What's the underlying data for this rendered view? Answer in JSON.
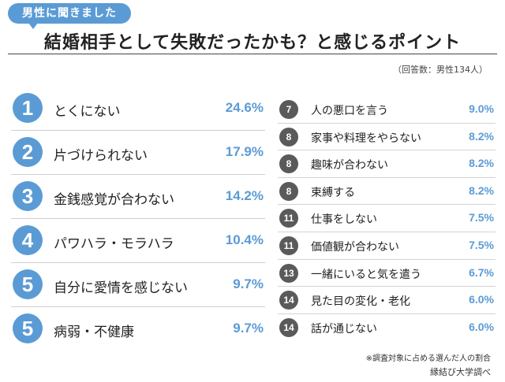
{
  "header": {
    "tag": "男性に聞きました",
    "title": "結婚相手として失敗だったかも？と感じるポイント",
    "respondents": "（回答数：男性134人）"
  },
  "footer": {
    "note": "※調査対象に占める選んだ人の割合",
    "source": "縁結び大学調べ"
  },
  "colors": {
    "accent": "#5b9bd5",
    "badge_dark": "#5a5a5a"
  },
  "chart_data": {
    "type": "table",
    "title": "結婚相手として失敗だったかも？と感じるポイント",
    "columns": [
      "rank",
      "item",
      "percent"
    ],
    "rows": [
      {
        "rank": "1",
        "item": "とくにない",
        "value": 24.6,
        "display": "24.6%"
      },
      {
        "rank": "2",
        "item": "片づけられない",
        "value": 17.9,
        "display": "17.9%"
      },
      {
        "rank": "3",
        "item": "金銭感覚が合わない",
        "value": 14.2,
        "display": "14.2%"
      },
      {
        "rank": "4",
        "item": "パワハラ・モラハラ",
        "value": 10.4,
        "display": "10.4%"
      },
      {
        "rank": "5",
        "item": "自分に愛情を感じない",
        "value": 9.7,
        "display": "9.7%"
      },
      {
        "rank": "5",
        "item": "病弱・不健康",
        "value": 9.7,
        "display": "9.7%"
      },
      {
        "rank": "7",
        "item": "人の悪口を言う",
        "value": 9.0,
        "display": "9.0%"
      },
      {
        "rank": "8",
        "item": "家事や料理をやらない",
        "value": 8.2,
        "display": "8.2%"
      },
      {
        "rank": "8",
        "item": "趣味が合わない",
        "value": 8.2,
        "display": "8.2%"
      },
      {
        "rank": "8",
        "item": "束縛する",
        "value": 8.2,
        "display": "8.2%"
      },
      {
        "rank": "11",
        "item": "仕事をしない",
        "value": 7.5,
        "display": "7.5%"
      },
      {
        "rank": "11",
        "item": "価値観が合わない",
        "value": 7.5,
        "display": "7.5%"
      },
      {
        "rank": "13",
        "item": "一緒にいると気を遣う",
        "value": 6.7,
        "display": "6.7%"
      },
      {
        "rank": "14",
        "item": "見た目の変化・老化",
        "value": 6.0,
        "display": "6.0%"
      },
      {
        "rank": "14",
        "item": "話が通じない",
        "value": 6.0,
        "display": "6.0%"
      }
    ]
  }
}
